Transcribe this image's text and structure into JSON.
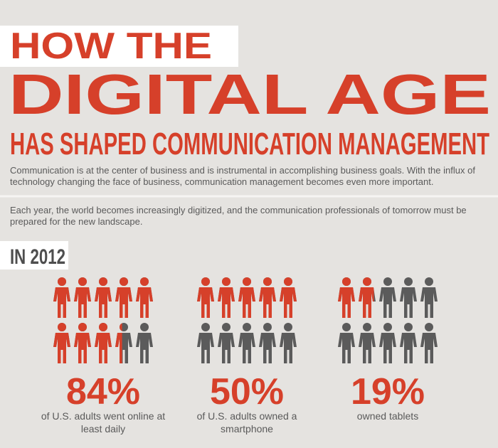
{
  "header": {
    "line1": "HOW THE",
    "line2": "DIGITAL AGE",
    "line3": "HAS SHAPED COMMUNICATION MANAGEMENT"
  },
  "intro": [
    "Communication is at the center of business and is instrumental in accomplishing business goals. With the influx of technology changing the face of business, communication management becomes even more important.",
    "Each year, the world becomes increasingly digitized, and the communication professionals of tomorrow must be prepared for the new landscape."
  ],
  "section": "IN 2012",
  "chart_data": {
    "type": "pictograph",
    "categories": [
      "of U.S. adults went online at least daily",
      "of U.S. adults owned a smartphone",
      "owned tablets"
    ],
    "values": [
      84,
      50,
      19
    ],
    "value_labels": [
      "84%",
      "50%",
      "19%"
    ],
    "color": "#d6402a",
    "base_color": "#5b5b5b"
  }
}
